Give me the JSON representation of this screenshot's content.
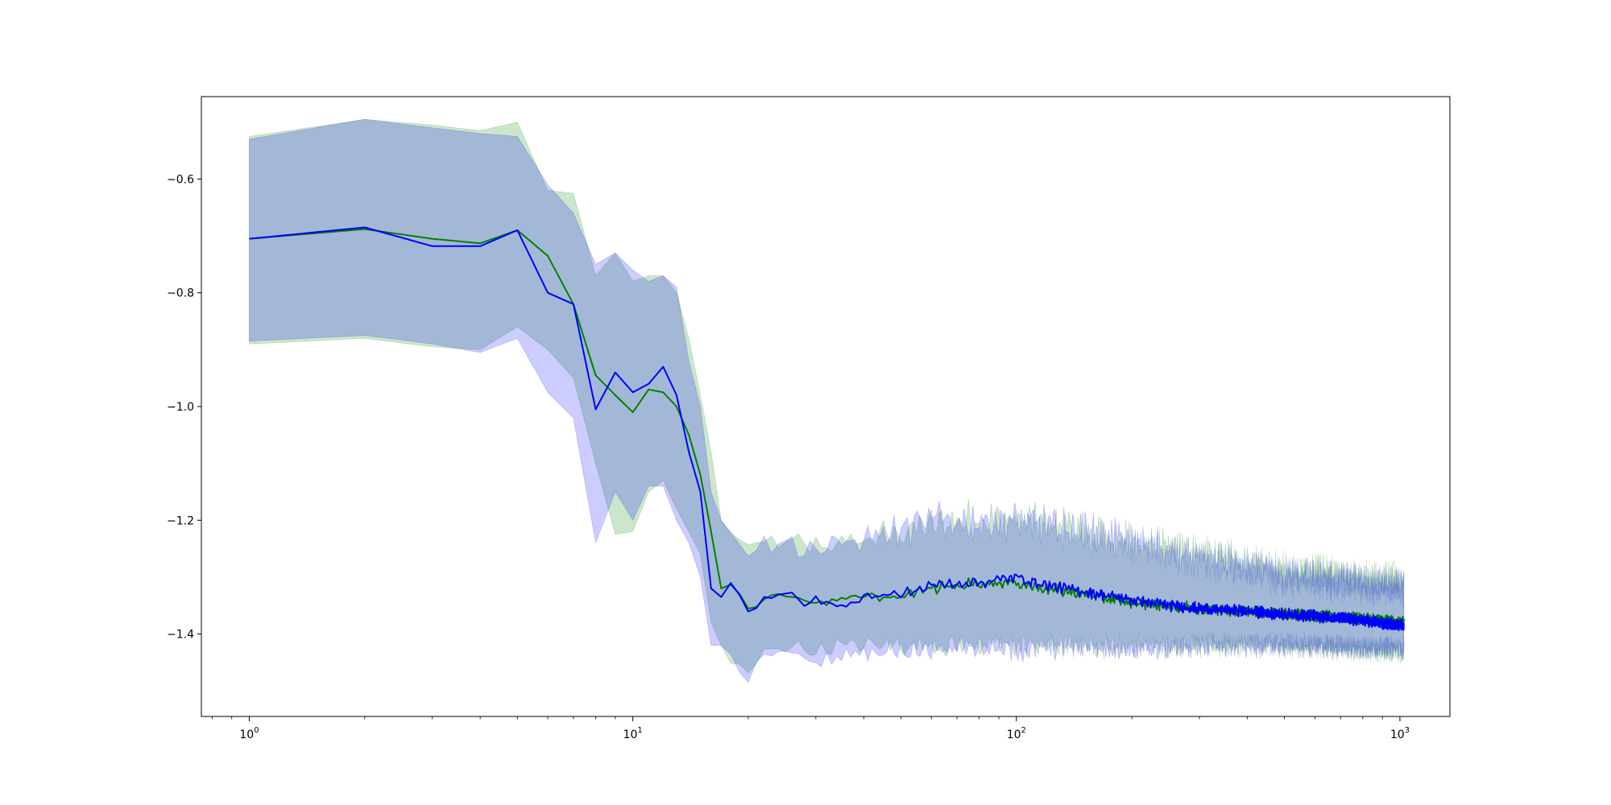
{
  "chart_data": {
    "type": "line",
    "title": "",
    "xlabel": "",
    "ylabel": "",
    "xscale": "log",
    "xlim": [
      0.75,
      1350
    ],
    "ylim": [
      -1.545,
      -0.455
    ],
    "grid": false,
    "legend": "none",
    "yticks": [
      -0.6,
      -0.8,
      -1.0,
      -1.2,
      -1.4
    ],
    "ytick_labels": [
      "−0.6",
      "−0.8",
      "−1.0",
      "−1.2",
      "−1.4"
    ],
    "xticks": [
      1,
      10,
      100,
      1000
    ],
    "xtick_labels": [
      {
        "base": "10",
        "exp": "0"
      },
      {
        "base": "10",
        "exp": "1"
      },
      {
        "base": "10",
        "exp": "2"
      },
      {
        "base": "10",
        "exp": "3"
      }
    ],
    "series": [
      {
        "color": "#008000",
        "band_color": "#008000",
        "band_alpha": 0.2,
        "mean": [
          [
            1,
            -0.705
          ],
          [
            2,
            -0.688
          ],
          [
            3,
            -0.705
          ],
          [
            4,
            -0.713
          ],
          [
            5,
            -0.69
          ],
          [
            6,
            -0.735
          ],
          [
            7,
            -0.82
          ],
          [
            8,
            -0.945
          ],
          [
            9,
            -0.98
          ],
          [
            10,
            -1.01
          ],
          [
            11,
            -0.97
          ],
          [
            12,
            -0.975
          ],
          [
            13,
            -1.0
          ],
          [
            14,
            -1.05
          ],
          [
            15,
            -1.12
          ],
          [
            16,
            -1.22
          ],
          [
            17,
            -1.32
          ],
          [
            18,
            -1.31
          ],
          [
            20,
            -1.355
          ],
          [
            22,
            -1.34
          ],
          [
            25,
            -1.33
          ],
          [
            30,
            -1.345
          ],
          [
            35,
            -1.34
          ],
          [
            40,
            -1.335
          ],
          [
            50,
            -1.335
          ],
          [
            60,
            -1.32
          ],
          [
            70,
            -1.315
          ],
          [
            80,
            -1.31
          ],
          [
            100,
            -1.31
          ],
          [
            120,
            -1.32
          ],
          [
            150,
            -1.33
          ],
          [
            200,
            -1.345
          ],
          [
            250,
            -1.35
          ],
          [
            300,
            -1.355
          ],
          [
            400,
            -1.36
          ],
          [
            500,
            -1.365
          ],
          [
            700,
            -1.37
          ],
          [
            1024,
            -1.38
          ]
        ],
        "upper": [
          [
            1,
            -0.525
          ],
          [
            2,
            -0.495
          ],
          [
            3,
            -0.505
          ],
          [
            4,
            -0.515
          ],
          [
            5,
            -0.5
          ],
          [
            6,
            -0.62
          ],
          [
            7,
            -0.625
          ],
          [
            8,
            -0.77
          ],
          [
            9,
            -0.73
          ],
          [
            10,
            -0.78
          ],
          [
            11,
            -0.77
          ],
          [
            12,
            -0.77
          ],
          [
            13,
            -0.8
          ],
          [
            14,
            -0.88
          ],
          [
            15,
            -0.98
          ],
          [
            16,
            -1.08
          ],
          [
            17,
            -1.2
          ],
          [
            18,
            -1.22
          ],
          [
            20,
            -1.25
          ],
          [
            22,
            -1.24
          ],
          [
            25,
            -1.24
          ],
          [
            30,
            -1.245
          ],
          [
            35,
            -1.24
          ],
          [
            40,
            -1.235
          ],
          [
            50,
            -1.22
          ],
          [
            60,
            -1.21
          ],
          [
            70,
            -1.2
          ],
          [
            80,
            -1.2
          ],
          [
            100,
            -1.2
          ],
          [
            150,
            -1.22
          ],
          [
            200,
            -1.24
          ],
          [
            300,
            -1.26
          ],
          [
            500,
            -1.29
          ],
          [
            1024,
            -1.31
          ]
        ],
        "lower": [
          [
            1,
            -0.89
          ],
          [
            2,
            -0.88
          ],
          [
            3,
            -0.895
          ],
          [
            4,
            -0.9
          ],
          [
            5,
            -0.86
          ],
          [
            6,
            -0.9
          ],
          [
            7,
            -0.95
          ],
          [
            8,
            -1.1
          ],
          [
            9,
            -1.225
          ],
          [
            10,
            -1.22
          ],
          [
            11,
            -1.15
          ],
          [
            12,
            -1.13
          ],
          [
            13,
            -1.18
          ],
          [
            14,
            -1.22
          ],
          [
            15,
            -1.26
          ],
          [
            16,
            -1.38
          ],
          [
            17,
            -1.42
          ],
          [
            18,
            -1.45
          ],
          [
            20,
            -1.47
          ],
          [
            22,
            -1.43
          ],
          [
            25,
            -1.42
          ],
          [
            30,
            -1.43
          ],
          [
            35,
            -1.42
          ],
          [
            40,
            -1.42
          ],
          [
            50,
            -1.42
          ],
          [
            70,
            -1.42
          ],
          [
            100,
            -1.42
          ],
          [
            150,
            -1.42
          ],
          [
            200,
            -1.42
          ],
          [
            300,
            -1.42
          ],
          [
            500,
            -1.42
          ],
          [
            1024,
            -1.43
          ]
        ]
      },
      {
        "color": "#0000ff",
        "band_color": "#0000ff",
        "band_alpha": 0.2,
        "mean": [
          [
            1,
            -0.705
          ],
          [
            2,
            -0.685
          ],
          [
            3,
            -0.718
          ],
          [
            4,
            -0.718
          ],
          [
            5,
            -0.69
          ],
          [
            6,
            -0.8
          ],
          [
            7,
            -0.82
          ],
          [
            8,
            -1.005
          ],
          [
            9,
            -0.94
          ],
          [
            10,
            -0.975
          ],
          [
            11,
            -0.96
          ],
          [
            12,
            -0.93
          ],
          [
            13,
            -0.98
          ],
          [
            14,
            -1.08
          ],
          [
            15,
            -1.15
          ],
          [
            16,
            -1.32
          ],
          [
            17,
            -1.335
          ],
          [
            18,
            -1.31
          ],
          [
            20,
            -1.36
          ],
          [
            22,
            -1.34
          ],
          [
            25,
            -1.325
          ],
          [
            28,
            -1.35
          ],
          [
            30,
            -1.34
          ],
          [
            35,
            -1.35
          ],
          [
            40,
            -1.335
          ],
          [
            50,
            -1.33
          ],
          [
            60,
            -1.315
          ],
          [
            70,
            -1.31
          ],
          [
            80,
            -1.31
          ],
          [
            100,
            -1.3
          ],
          [
            120,
            -1.315
          ],
          [
            150,
            -1.325
          ],
          [
            200,
            -1.34
          ],
          [
            250,
            -1.35
          ],
          [
            300,
            -1.355
          ],
          [
            400,
            -1.36
          ],
          [
            500,
            -1.365
          ],
          [
            700,
            -1.372
          ],
          [
            1024,
            -1.385
          ]
        ],
        "upper": [
          [
            1,
            -0.53
          ],
          [
            2,
            -0.495
          ],
          [
            3,
            -0.51
          ],
          [
            4,
            -0.52
          ],
          [
            5,
            -0.525
          ],
          [
            6,
            -0.61
          ],
          [
            7,
            -0.66
          ],
          [
            8,
            -0.75
          ],
          [
            9,
            -0.73
          ],
          [
            10,
            -0.76
          ],
          [
            11,
            -0.78
          ],
          [
            12,
            -0.77
          ],
          [
            13,
            -0.79
          ],
          [
            14,
            -0.92
          ],
          [
            15,
            -1.0
          ],
          [
            16,
            -1.15
          ],
          [
            17,
            -1.2
          ],
          [
            18,
            -1.22
          ],
          [
            20,
            -1.25
          ],
          [
            22,
            -1.245
          ],
          [
            25,
            -1.24
          ],
          [
            30,
            -1.25
          ],
          [
            35,
            -1.245
          ],
          [
            40,
            -1.23
          ],
          [
            50,
            -1.22
          ],
          [
            60,
            -1.2
          ],
          [
            70,
            -1.2
          ],
          [
            80,
            -1.2
          ],
          [
            100,
            -1.2
          ],
          [
            150,
            -1.22
          ],
          [
            200,
            -1.24
          ],
          [
            300,
            -1.27
          ],
          [
            500,
            -1.3
          ],
          [
            1024,
            -1.32
          ]
        ],
        "lower": [
          [
            1,
            -0.885
          ],
          [
            2,
            -0.875
          ],
          [
            3,
            -0.89
          ],
          [
            4,
            -0.905
          ],
          [
            5,
            -0.88
          ],
          [
            6,
            -0.975
          ],
          [
            7,
            -1.02
          ],
          [
            8,
            -1.24
          ],
          [
            9,
            -1.15
          ],
          [
            10,
            -1.2
          ],
          [
            11,
            -1.14
          ],
          [
            12,
            -1.14
          ],
          [
            13,
            -1.2
          ],
          [
            14,
            -1.24
          ],
          [
            15,
            -1.3
          ],
          [
            16,
            -1.42
          ],
          [
            17,
            -1.42
          ],
          [
            18,
            -1.44
          ],
          [
            20,
            -1.48
          ],
          [
            22,
            -1.44
          ],
          [
            25,
            -1.43
          ],
          [
            30,
            -1.45
          ],
          [
            35,
            -1.44
          ],
          [
            40,
            -1.43
          ],
          [
            50,
            -1.43
          ],
          [
            70,
            -1.42
          ],
          [
            100,
            -1.43
          ],
          [
            150,
            -1.42
          ],
          [
            200,
            -1.43
          ],
          [
            300,
            -1.42
          ],
          [
            500,
            -1.42
          ],
          [
            1024,
            -1.425
          ]
        ]
      }
    ]
  }
}
